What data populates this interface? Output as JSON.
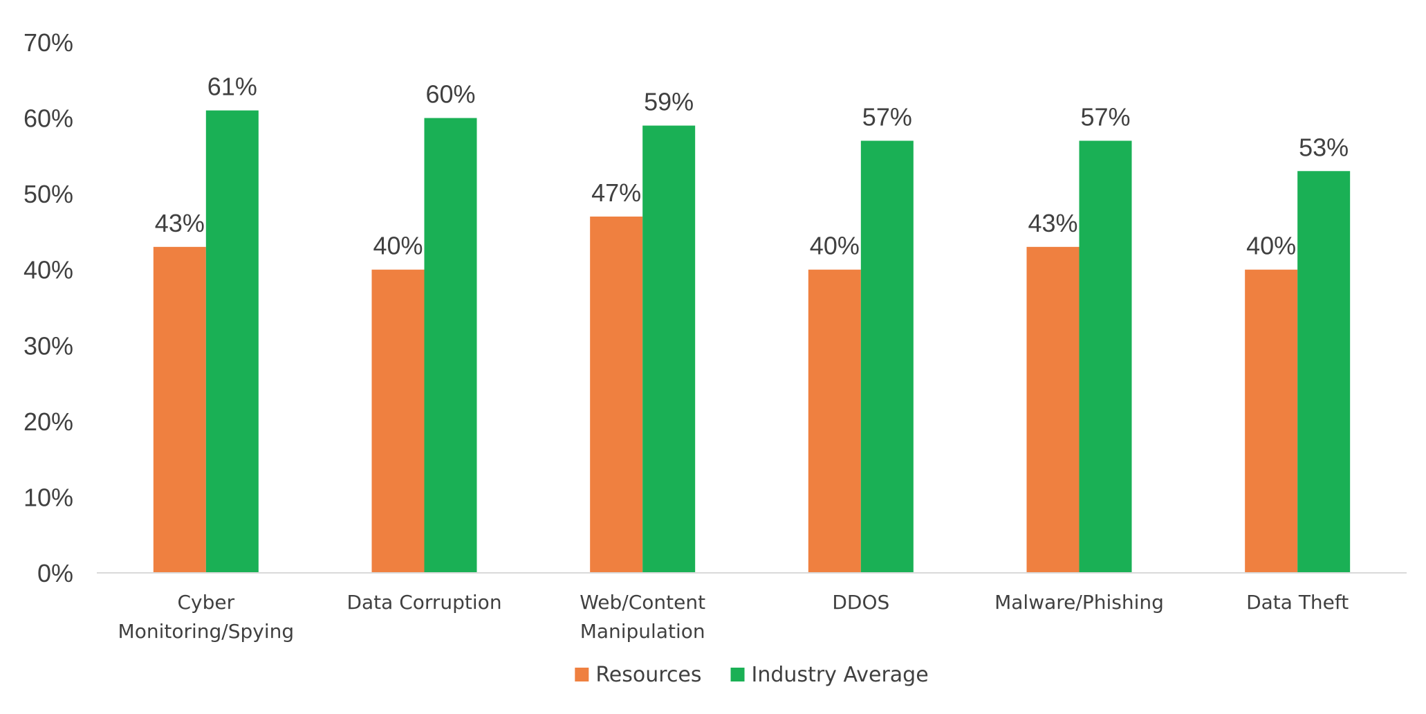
{
  "chart_data": {
    "type": "bar",
    "title": "",
    "xlabel": "",
    "ylabel": "",
    "ylim": [
      0,
      70
    ],
    "yticks": [
      0,
      10,
      20,
      30,
      40,
      50,
      60,
      70
    ],
    "ytick_labels": [
      "0%",
      "10%",
      "20%",
      "30%",
      "40%",
      "50%",
      "60%",
      "70%"
    ],
    "grid": false,
    "legend": "bottom",
    "categories": [
      [
        "Cyber",
        "Monitoring/Spying"
      ],
      [
        "Data Corruption"
      ],
      [
        "Web/Content",
        "Manipulation"
      ],
      [
        "DDOS"
      ],
      [
        "Malware/Phishing"
      ],
      [
        "Data Theft"
      ]
    ],
    "series": [
      {
        "name": "Resources",
        "color": "#ef8040",
        "values": [
          43,
          40,
          47,
          40,
          43,
          40
        ],
        "labels": [
          "43%",
          "40%",
          "47%",
          "40%",
          "43%",
          "40%"
        ]
      },
      {
        "name": "Industry Average",
        "color": "#1ab055",
        "values": [
          61,
          60,
          59,
          57,
          57,
          53
        ],
        "labels": [
          "61%",
          "60%",
          "59%",
          "57%",
          "57%",
          "53%"
        ]
      }
    ]
  }
}
